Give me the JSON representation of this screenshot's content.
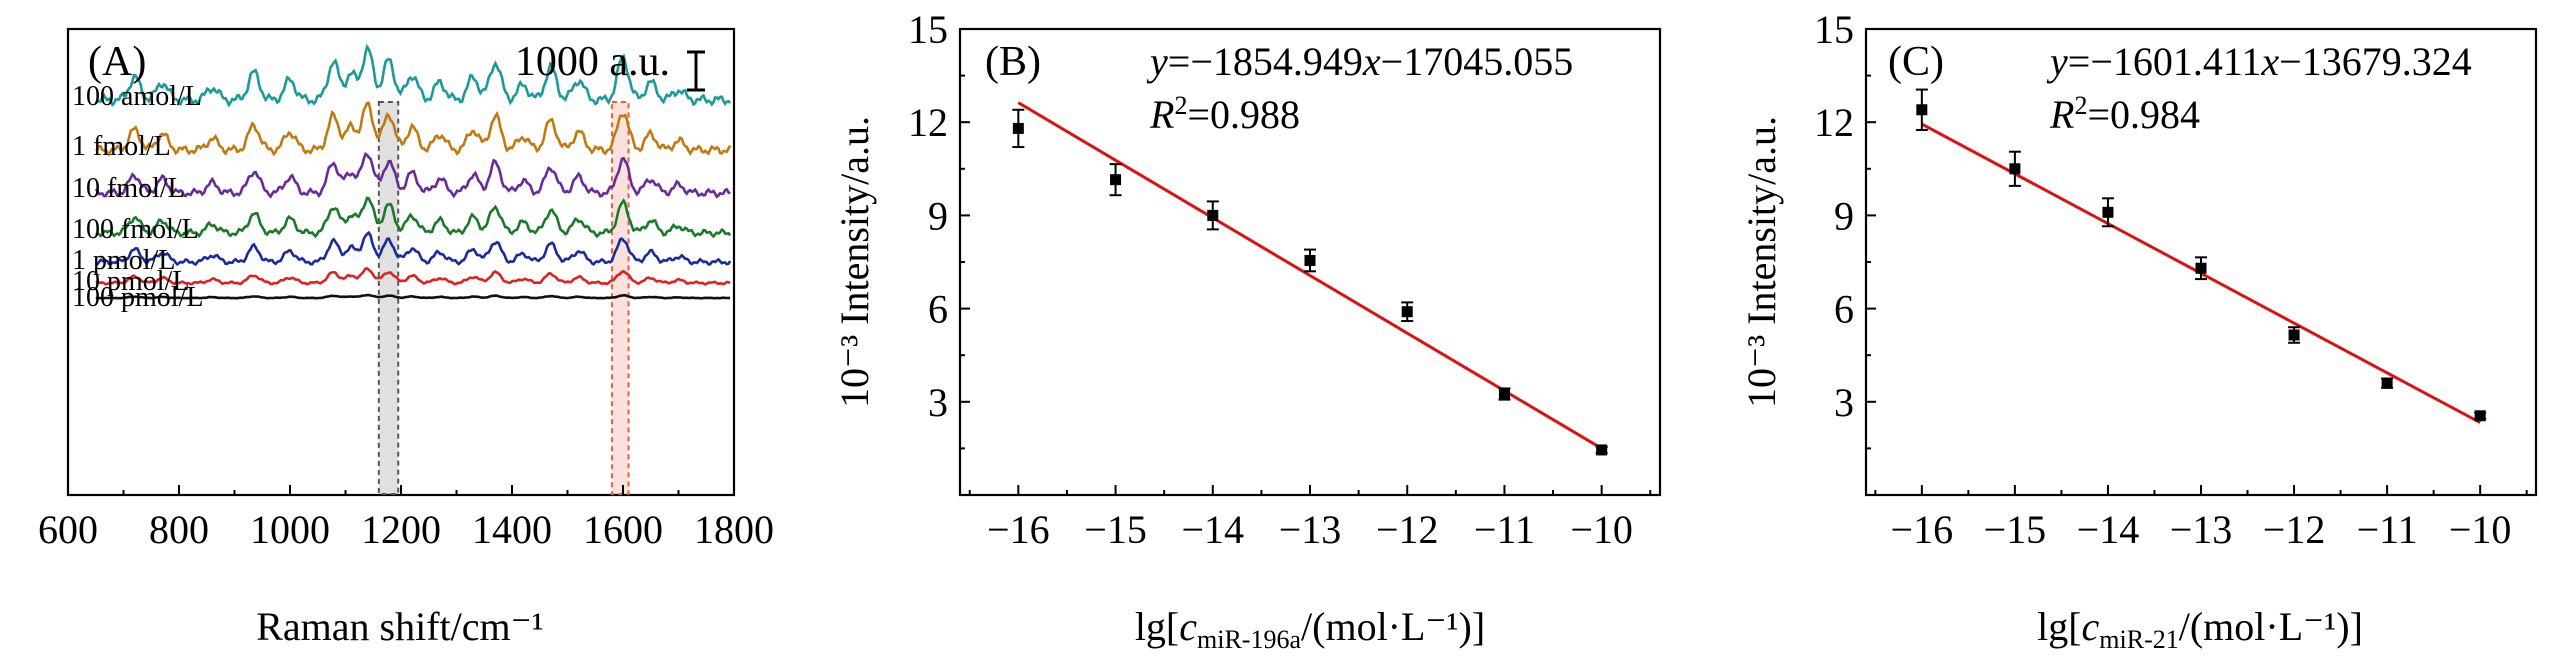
{
  "chart_data": [
    {
      "type": "line",
      "panel": "(A)",
      "xlabel": "Raman shift/cm⁻¹",
      "xlim": [
        600,
        1800
      ],
      "x_ticks": [
        600,
        800,
        1000,
        1200,
        1400,
        1600,
        1800
      ],
      "y_ticks_visible": false,
      "scale_bar": "1000 a.u.",
      "highlight_bands": [
        {
          "range": [
            1160,
            1195
          ],
          "color": "#555555"
        },
        {
          "range": [
            1580,
            1610
          ],
          "color": "#e06040"
        }
      ],
      "series": [
        {
          "name": "100 amol/L",
          "color": "#1a9a9a",
          "amp": 1.0
        },
        {
          "name": "1 fmol/L",
          "color": "#c07a10",
          "amp": 0.9
        },
        {
          "name": "10 fmol/L",
          "color": "#6a2a9a",
          "amp": 0.8
        },
        {
          "name": "100 fmol/L",
          "color": "#1a7a2a",
          "amp": 0.7
        },
        {
          "name": "1 pmol/L",
          "color": "#1a2aa0",
          "amp": 0.55
        },
        {
          "name": "10 pmol/L",
          "color": "#dd2222",
          "amp": 0.28
        },
        {
          "name": "100 pmol/L",
          "color": "#111111",
          "amp": 0.06
        }
      ]
    },
    {
      "type": "scatter",
      "panel": "(B)",
      "xlabel_prefix": "lg[",
      "xlabel_var": "c",
      "xlabel_sub": "miR-196a",
      "xlabel_suffix": "/(mol·L⁻¹)]",
      "ylabel": "10⁻³ Intensity/a.u.",
      "xlim": [
        -16.6,
        -9.4
      ],
      "ylim": [
        0,
        15
      ],
      "x_ticks": [
        -16,
        -15,
        -14,
        -13,
        -12,
        -11,
        -10
      ],
      "y_ticks": [
        3,
        6,
        9,
        12,
        15
      ],
      "equation_y": "y",
      "equation_rest": "=−1854.949",
      "equation_x": "x",
      "equation_tail": "−17045.055",
      "r2_label": "R",
      "r2_value": "=0.988",
      "fit_line": {
        "x": [
          -16,
          -10
        ],
        "y": [
          12.63,
          1.5
        ]
      },
      "points": [
        {
          "x": -16,
          "y": 11.8,
          "err": 0.6
        },
        {
          "x": -15,
          "y": 10.15,
          "err": 0.5
        },
        {
          "x": -14,
          "y": 9.0,
          "err": 0.45
        },
        {
          "x": -13,
          "y": 7.55,
          "err": 0.35
        },
        {
          "x": -12,
          "y": 5.9,
          "err": 0.3
        },
        {
          "x": -11,
          "y": 3.25,
          "err": 0.18
        },
        {
          "x": -10,
          "y": 1.45,
          "err": 0.1
        }
      ]
    },
    {
      "type": "scatter",
      "panel": "(C)",
      "xlabel_prefix": "lg[",
      "xlabel_var": "c",
      "xlabel_sub": "miR-21",
      "xlabel_suffix": "/(mol·L⁻¹)]",
      "ylabel": "10⁻³ Intensity/a.u.",
      "xlim": [
        -16.6,
        -9.4
      ],
      "ylim": [
        0,
        15
      ],
      "x_ticks": [
        -16,
        -15,
        -14,
        -13,
        -12,
        -11,
        -10
      ],
      "y_ticks": [
        3,
        6,
        9,
        12,
        15
      ],
      "equation_y": "y",
      "equation_rest": "=−1601.411",
      "equation_x": "x",
      "equation_tail": "−13679.324",
      "r2_label": "R",
      "r2_value": "=0.984",
      "fit_line": {
        "x": [
          -16,
          -10
        ],
        "y": [
          11.94,
          2.33
        ]
      },
      "points": [
        {
          "x": -16,
          "y": 12.4,
          "err": 0.65
        },
        {
          "x": -15,
          "y": 10.5,
          "err": 0.55
        },
        {
          "x": -14,
          "y": 9.1,
          "err": 0.45
        },
        {
          "x": -13,
          "y": 7.3,
          "err": 0.35
        },
        {
          "x": -12,
          "y": 5.15,
          "err": 0.25
        },
        {
          "x": -11,
          "y": 3.6,
          "err": 0.15
        },
        {
          "x": -10,
          "y": 2.55,
          "err": 0.1
        }
      ]
    }
  ]
}
